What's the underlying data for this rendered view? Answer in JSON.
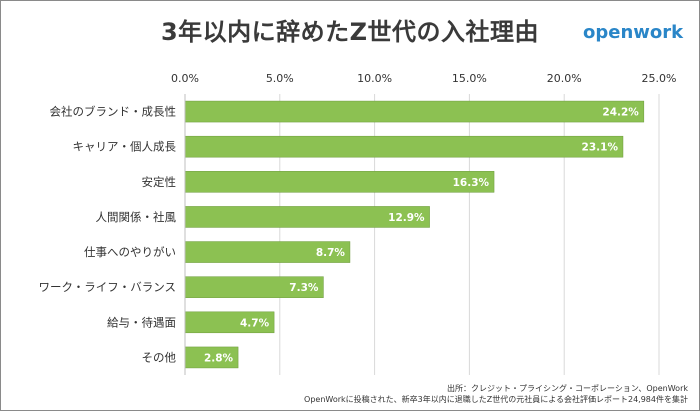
{
  "title": "3年以内に辞めたZ世代の入社理由",
  "logo": "openwork",
  "source": {
    "line1": "出所：クレジット・プライシング・コーポレーション、OpenWork",
    "line2": "OpenWorkに投稿された、新卒3年以内に退職したZ世代の元社員による会社評価レポート24,984件を集計"
  },
  "colors": {
    "bar": "#8cc152",
    "bar_stroke": "#6a9a3a",
    "label": "#ffffff"
  },
  "chart_data": {
    "type": "bar",
    "orientation": "horizontal",
    "categories": [
      "会社のブランド・成長性",
      "キャリア・個人成長",
      "安定性",
      "人間関係・社風",
      "仕事へのやりがい",
      "ワーク・ライフ・バランス",
      "給与・待遇面",
      "その他"
    ],
    "values": [
      24.2,
      23.1,
      16.3,
      12.9,
      8.7,
      7.3,
      4.7,
      2.8
    ],
    "data_labels": [
      "24.2%",
      "23.1%",
      "16.3%",
      "12.9%",
      "8.7%",
      "7.3%",
      "4.7%",
      "2.8%"
    ],
    "xlim": [
      0,
      25
    ],
    "xticks": [
      0,
      5,
      10,
      15,
      20,
      25
    ],
    "xtick_labels": [
      "0.0%",
      "5.0%",
      "10.0%",
      "15.0%",
      "20.0%",
      "25.0%"
    ],
    "axis_position": "top",
    "grid": true
  }
}
